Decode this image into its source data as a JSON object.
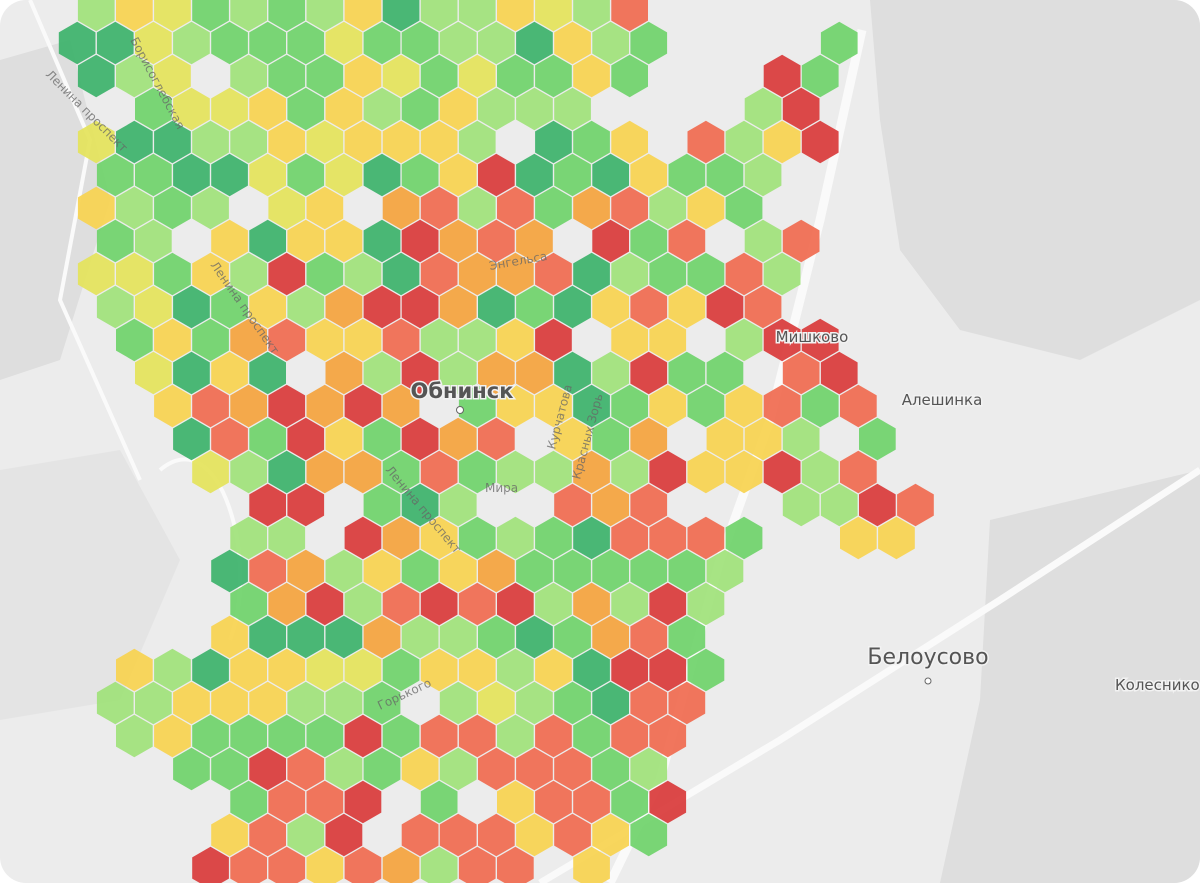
{
  "map": {
    "places": [
      "Обнинск",
      "Белоусово",
      "Мишково",
      "Алешинка",
      "Колеснико"
    ],
    "streets": [
      "Борисоглебская",
      "Ленина проспект",
      "Ленина проспект",
      "Энгельса",
      "Курчатова",
      "Красных Зорь",
      "Мира",
      "Ленина проспект",
      "Горького"
    ]
  }
}
